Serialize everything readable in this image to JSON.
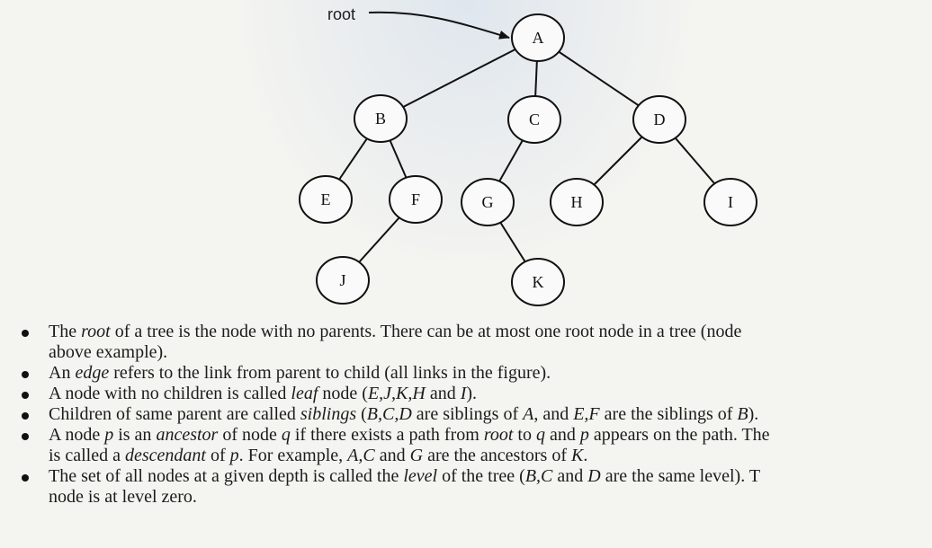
{
  "root_label": "root",
  "nodes": [
    {
      "id": "A"
    },
    {
      "id": "B"
    },
    {
      "id": "C"
    },
    {
      "id": "D"
    },
    {
      "id": "E"
    },
    {
      "id": "F"
    },
    {
      "id": "G"
    },
    {
      "id": "H"
    },
    {
      "id": "I"
    },
    {
      "id": "J"
    },
    {
      "id": "K"
    }
  ],
  "edges": [
    [
      "A",
      "B"
    ],
    [
      "A",
      "C"
    ],
    [
      "A",
      "D"
    ],
    [
      "B",
      "E"
    ],
    [
      "B",
      "F"
    ],
    [
      "C",
      "G"
    ],
    [
      "D",
      "H"
    ],
    [
      "D",
      "I"
    ],
    [
      "F",
      "J"
    ],
    [
      "G",
      "K"
    ]
  ],
  "bullets": [
    {
      "lines": [
        [
          {
            "t": "The "
          },
          {
            "t": "root",
            "i": true
          },
          {
            "t": " of a tree is the node with no parents. There can be at most one root node in a tree (node "
          }
        ],
        [
          {
            "t": "above example)."
          }
        ]
      ]
    },
    {
      "lines": [
        [
          {
            "t": "An "
          },
          {
            "t": "edge",
            "i": true
          },
          {
            "t": " refers to the link from parent to child (all links in the figure)."
          }
        ]
      ]
    },
    {
      "lines": [
        [
          {
            "t": "A node with no children is called "
          },
          {
            "t": "leaf",
            "i": true
          },
          {
            "t": " node ("
          },
          {
            "t": "E,J,K,H",
            "i": true
          },
          {
            "t": " and "
          },
          {
            "t": "I",
            "i": true
          },
          {
            "t": ")."
          }
        ]
      ]
    },
    {
      "lines": [
        [
          {
            "t": "Children of same parent are called "
          },
          {
            "t": "siblings",
            "i": true
          },
          {
            "t": " ("
          },
          {
            "t": "B,C,D",
            "i": true
          },
          {
            "t": " are siblings of "
          },
          {
            "t": "A",
            "i": true
          },
          {
            "t": ", and "
          },
          {
            "t": "E,F",
            "i": true
          },
          {
            "t": " are the siblings of "
          },
          {
            "t": "B",
            "i": true
          },
          {
            "t": ")."
          }
        ]
      ]
    },
    {
      "lines": [
        [
          {
            "t": "A node "
          },
          {
            "t": "p",
            "i": true
          },
          {
            "t": " is an "
          },
          {
            "t": "ancestor",
            "i": true
          },
          {
            "t": " of node "
          },
          {
            "t": "q",
            "i": true
          },
          {
            "t": " if there exists a path from "
          },
          {
            "t": "root",
            "i": true
          },
          {
            "t": " to "
          },
          {
            "t": "q",
            "i": true
          },
          {
            "t": " and "
          },
          {
            "t": "p",
            "i": true
          },
          {
            "t": " appears on the path. The"
          }
        ],
        [
          {
            "t": "is called a "
          },
          {
            "t": "descendant",
            "i": true
          },
          {
            "t": " of "
          },
          {
            "t": "p",
            "i": true
          },
          {
            "t": ". For example, "
          },
          {
            "t": "A,C",
            "i": true
          },
          {
            "t": " and "
          },
          {
            "t": "G",
            "i": true
          },
          {
            "t": " are the ancestors of "
          },
          {
            "t": "K",
            "i": true
          },
          {
            "t": "."
          }
        ]
      ]
    },
    {
      "lines": [
        [
          {
            "t": "The set of all nodes at a given depth is called the "
          },
          {
            "t": "level",
            "i": true
          },
          {
            "t": " of the tree ("
          },
          {
            "t": "B,C",
            "i": true
          },
          {
            "t": " and "
          },
          {
            "t": "D",
            "i": true
          },
          {
            "t": " are the same level). T"
          }
        ],
        [
          {
            "t": "node is at level zero."
          }
        ]
      ]
    }
  ]
}
